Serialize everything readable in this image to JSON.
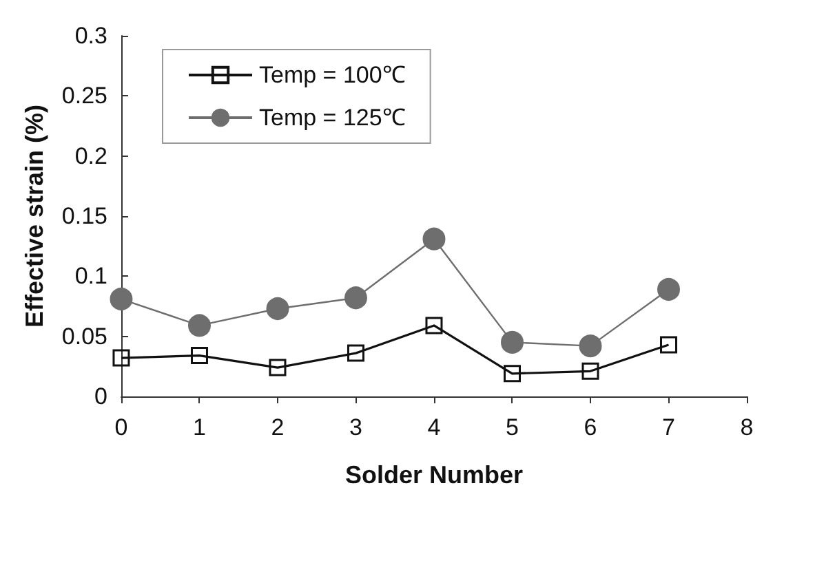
{
  "chart_data": {
    "type": "line",
    "xlabel": "Solder Number",
    "ylabel": "Effective strain (%)",
    "xlim": [
      0,
      8
    ],
    "xticks": [
      0,
      1,
      2,
      3,
      4,
      5,
      6,
      7,
      8
    ],
    "ylim": [
      0,
      0.3
    ],
    "yticks": [
      0,
      0.05,
      0.1,
      0.15,
      0.2,
      0.25,
      0.3
    ],
    "x": [
      0,
      1,
      2,
      3,
      4,
      5,
      6,
      7
    ],
    "grid": false,
    "legend": "top left",
    "line_style": "solid",
    "series": [
      {
        "name": "Temp = 100℃",
        "color": "#111111",
        "marker": "square",
        "values": [
          0.032,
          0.034,
          0.024,
          0.036,
          0.059,
          0.019,
          0.021,
          0.043
        ]
      },
      {
        "name": "Temp = 125℃",
        "color": "#6e6e6e",
        "marker": "circle",
        "values": [
          0.081,
          0.059,
          0.073,
          0.082,
          0.131,
          0.045,
          0.042,
          0.089
        ]
      }
    ]
  }
}
